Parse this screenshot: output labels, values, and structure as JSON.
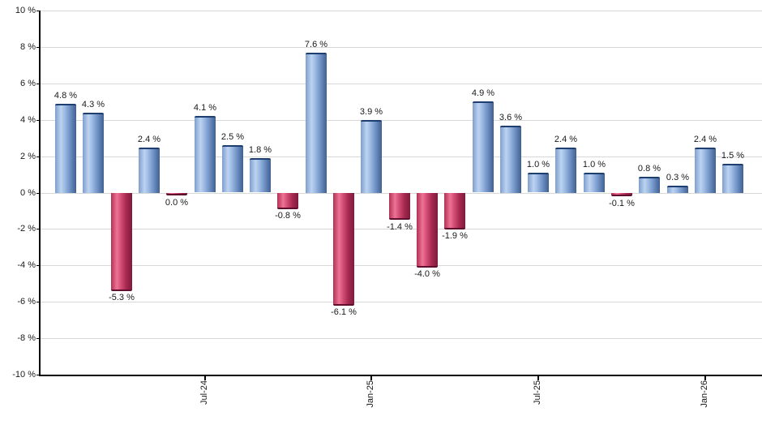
{
  "chart_data": {
    "type": "bar",
    "title": "",
    "description": "Monthly percentage returns bar chart; positive months blue, negative or zero months red",
    "values": [
      4.8,
      4.3,
      -5.3,
      2.4,
      0.0,
      4.1,
      2.5,
      1.8,
      -0.8,
      7.6,
      -6.1,
      3.9,
      -1.4,
      -4.0,
      -1.9,
      4.9,
      3.6,
      1.0,
      2.4,
      1.0,
      -0.1,
      0.8,
      0.3,
      2.4,
      1.5
    ],
    "bar_labels": [
      "4.8 %",
      "4.3 %",
      "-5.3 %",
      "2.4 %",
      "0.0 %",
      "4.1 %",
      "2.5 %",
      "1.8 %",
      "-0.8 %",
      "7.6 %",
      "-6.1 %",
      "3.9 %",
      "-1.4 %",
      "-4.0 %",
      "-1.9 %",
      "4.9 %",
      "3.6 %",
      "1.0 %",
      "2.4 %",
      "1.0 %",
      "-0.1 %",
      "0.8 %",
      "0.3 %",
      "2.4 %",
      "1.5 %"
    ],
    "x_tick_labels": [
      {
        "index": 5,
        "label": "Jul-24"
      },
      {
        "index": 11,
        "label": "Jan-25"
      },
      {
        "index": 17,
        "label": "Jul-25"
      },
      {
        "index": 23,
        "label": "Jan-26"
      }
    ],
    "y_tick_labels": [
      "10 %",
      "8 %",
      "6 %",
      "4 %",
      "2 %",
      "0 %",
      "-2 %",
      "-4 %",
      "-6 %",
      "-8 %",
      "-10 %"
    ],
    "ylim": [
      -10,
      10
    ],
    "grid": "horizontal",
    "legend": "none",
    "colors": {
      "positive_fill": "#89a9d9",
      "positive_highlight": "#bdd3f0",
      "positive_edge": "#40608f",
      "positive_cap": "#1f3e70",
      "negative_fill": "#d65078",
      "negative_highlight": "#ee7394",
      "negative_edge": "#7d1b3c",
      "negative_cap": "#5f0f2d",
      "gridline": "#d8d8d8",
      "axis": "#000000",
      "text": "#1a1a1a"
    }
  }
}
